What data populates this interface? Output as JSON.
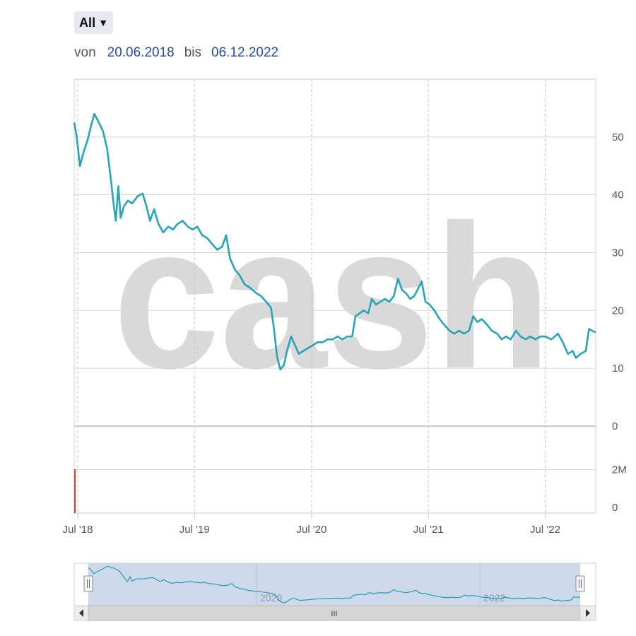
{
  "range_selector": {
    "label": "All"
  },
  "date_range": {
    "from_label": "von",
    "from": "20.06.2018",
    "to_label": "bis",
    "to": "06.12.2022"
  },
  "watermark": "cash",
  "navigator": {
    "year_labels": [
      "2020",
      "2022"
    ],
    "scroll_grip": "III"
  },
  "colors": {
    "line": "#2aa3b8",
    "volume": "#e0402a",
    "grid": "#d8d8d8",
    "navigator_mask": "#cfd9ec"
  },
  "chart_data": {
    "type": "line",
    "x_axis": {
      "tick_labels": [
        "Jul '18",
        "Jul '19",
        "Jul '20",
        "Jul '21",
        "Jul '22"
      ],
      "tick_dates": [
        "2018-07-01",
        "2019-07-01",
        "2020-07-01",
        "2021-07-01",
        "2022-07-01"
      ],
      "range": [
        "2018-06-20",
        "2022-12-06"
      ]
    },
    "y_axis_price": {
      "range": [
        0,
        60
      ],
      "tick_labels": [
        "0",
        "10",
        "20",
        "30",
        "40",
        "50"
      ],
      "tick_values": [
        0,
        10,
        20,
        30,
        40,
        50
      ]
    },
    "y_axis_volume": {
      "range": [
        0,
        4000000
      ],
      "tick_labels": [
        "0",
        "2M"
      ],
      "tick_values": [
        0,
        2000000
      ]
    },
    "grid": true,
    "series": [
      {
        "data": [
          [
            "2018-06-20",
            52.5
          ],
          [
            "2018-06-28",
            50.0
          ],
          [
            "2018-07-08",
            45.0
          ],
          [
            "2018-07-20",
            47.5
          ],
          [
            "2018-08-01",
            49.5
          ],
          [
            "2018-08-12",
            52.0
          ],
          [
            "2018-08-22",
            54.0
          ],
          [
            "2018-09-05",
            52.5
          ],
          [
            "2018-09-18",
            51.0
          ],
          [
            "2018-10-01",
            48.0
          ],
          [
            "2018-10-12",
            43.0
          ],
          [
            "2018-10-22",
            38.0
          ],
          [
            "2018-10-28",
            35.5
          ],
          [
            "2018-11-05",
            41.5
          ],
          [
            "2018-11-12",
            36.0
          ],
          [
            "2018-11-22",
            38.0
          ],
          [
            "2018-12-05",
            39.0
          ],
          [
            "2018-12-18",
            38.5
          ],
          [
            "2019-01-05",
            39.8
          ],
          [
            "2019-01-20",
            40.2
          ],
          [
            "2019-02-01",
            38.0
          ],
          [
            "2019-02-12",
            35.5
          ],
          [
            "2019-02-25",
            37.5
          ],
          [
            "2019-03-10",
            35.0
          ],
          [
            "2019-03-25",
            33.5
          ],
          [
            "2019-04-10",
            34.5
          ],
          [
            "2019-04-25",
            34.0
          ],
          [
            "2019-05-10",
            35.0
          ],
          [
            "2019-05-25",
            35.5
          ],
          [
            "2019-06-10",
            34.5
          ],
          [
            "2019-06-25",
            34.0
          ],
          [
            "2019-07-10",
            34.5
          ],
          [
            "2019-07-25",
            33.0
          ],
          [
            "2019-08-10",
            32.5
          ],
          [
            "2019-08-25",
            31.5
          ],
          [
            "2019-09-10",
            30.5
          ],
          [
            "2019-09-25",
            31.0
          ],
          [
            "2019-10-08",
            33.0
          ],
          [
            "2019-10-20",
            29.0
          ],
          [
            "2019-11-05",
            27.0
          ],
          [
            "2019-11-20",
            26.0
          ],
          [
            "2019-12-05",
            24.5
          ],
          [
            "2019-12-20",
            24.0
          ],
          [
            "2020-01-10",
            23.0
          ],
          [
            "2020-01-25",
            22.5
          ],
          [
            "2020-02-10",
            21.5
          ],
          [
            "2020-02-25",
            20.5
          ],
          [
            "2020-03-05",
            17.0
          ],
          [
            "2020-03-15",
            12.0
          ],
          [
            "2020-03-25",
            9.8
          ],
          [
            "2020-04-05",
            10.5
          ],
          [
            "2020-04-15",
            13.0
          ],
          [
            "2020-04-28",
            15.5
          ],
          [
            "2020-05-10",
            14.0
          ],
          [
            "2020-05-22",
            12.5
          ],
          [
            "2020-06-05",
            13.0
          ],
          [
            "2020-06-20",
            13.5
          ],
          [
            "2020-07-05",
            14.0
          ],
          [
            "2020-07-20",
            14.5
          ],
          [
            "2020-08-05",
            14.5
          ],
          [
            "2020-08-20",
            15.0
          ],
          [
            "2020-09-05",
            15.0
          ],
          [
            "2020-09-20",
            15.5
          ],
          [
            "2020-10-05",
            15.0
          ],
          [
            "2020-10-20",
            15.5
          ],
          [
            "2020-11-05",
            15.5
          ],
          [
            "2020-11-15",
            19.0
          ],
          [
            "2020-11-28",
            19.5
          ],
          [
            "2020-12-10",
            20.0
          ],
          [
            "2020-12-25",
            19.5
          ],
          [
            "2021-01-05",
            22.0
          ],
          [
            "2021-01-18",
            21.0
          ],
          [
            "2021-02-01",
            21.5
          ],
          [
            "2021-02-15",
            22.0
          ],
          [
            "2021-03-01",
            21.5
          ],
          [
            "2021-03-15",
            22.5
          ],
          [
            "2021-03-28",
            25.5
          ],
          [
            "2021-04-10",
            23.5
          ],
          [
            "2021-04-22",
            23.0
          ],
          [
            "2021-05-05",
            22.0
          ],
          [
            "2021-05-18",
            22.5
          ],
          [
            "2021-06-01",
            24.0
          ],
          [
            "2021-06-10",
            25.0
          ],
          [
            "2021-06-22",
            21.5
          ],
          [
            "2021-07-05",
            21.0
          ],
          [
            "2021-07-20",
            20.0
          ],
          [
            "2021-08-05",
            18.5
          ],
          [
            "2021-08-20",
            17.5
          ],
          [
            "2021-09-05",
            16.5
          ],
          [
            "2021-09-20",
            16.0
          ],
          [
            "2021-10-05",
            16.5
          ],
          [
            "2021-10-20",
            16.0
          ],
          [
            "2021-11-05",
            16.5
          ],
          [
            "2021-11-18",
            19.0
          ],
          [
            "2021-12-01",
            18.0
          ],
          [
            "2021-12-15",
            18.5
          ],
          [
            "2022-01-01",
            17.5
          ],
          [
            "2022-01-15",
            16.5
          ],
          [
            "2022-02-01",
            16.0
          ],
          [
            "2022-02-15",
            15.0
          ],
          [
            "2022-03-01",
            15.5
          ],
          [
            "2022-03-15",
            15.0
          ],
          [
            "2022-04-01",
            16.5
          ],
          [
            "2022-04-15",
            15.5
          ],
          [
            "2022-05-01",
            15.0
          ],
          [
            "2022-05-15",
            15.5
          ],
          [
            "2022-06-01",
            15.0
          ],
          [
            "2022-06-15",
            15.5
          ],
          [
            "2022-07-01",
            15.5
          ],
          [
            "2022-07-20",
            15.0
          ],
          [
            "2022-08-10",
            16.0
          ],
          [
            "2022-08-25",
            14.5
          ],
          [
            "2022-09-10",
            12.5
          ],
          [
            "2022-09-25",
            13.0
          ],
          [
            "2022-10-05",
            11.8
          ],
          [
            "2022-10-20",
            12.5
          ],
          [
            "2022-11-05",
            13.0
          ],
          [
            "2022-11-15",
            16.8
          ],
          [
            "2022-11-25",
            16.5
          ],
          [
            "2022-12-06",
            16.2
          ]
        ]
      }
    ]
  }
}
